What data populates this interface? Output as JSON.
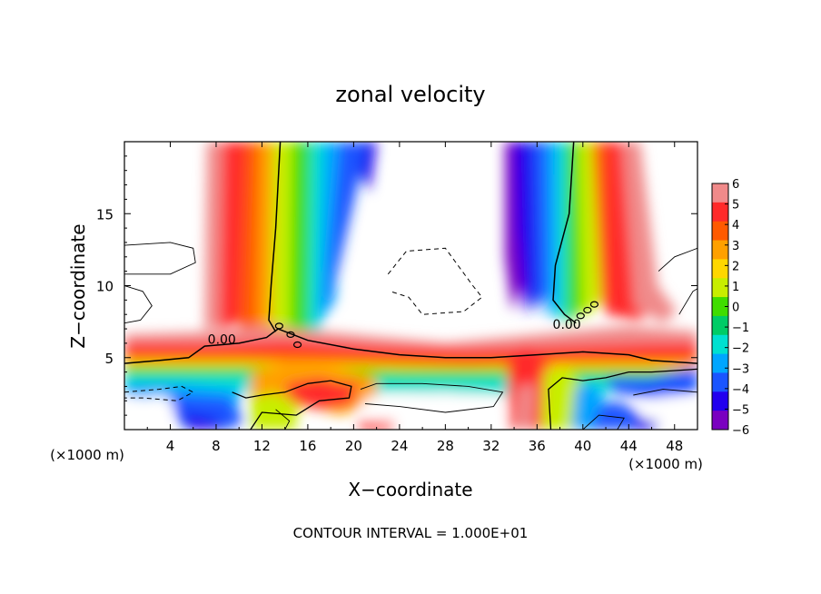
{
  "chart_data": {
    "type": "heatmap",
    "title": "zonal velocity",
    "xlabel": "X−coordinate",
    "ylabel": "Z−coordinate",
    "x_unit_left": "(×1000 m)",
    "x_unit_right": "(×1000 m)",
    "xlim": [
      0,
      50
    ],
    "ylim": [
      0,
      20
    ],
    "x_ticks": [
      4,
      8,
      12,
      16,
      20,
      24,
      28,
      32,
      36,
      40,
      44,
      48
    ],
    "y_ticks": [
      5,
      10,
      15
    ],
    "contour_label": "0.00",
    "footer": "CONTOUR INTERVAL = 1.000E+01",
    "colorbar": {
      "ticks": [
        6,
        5,
        4,
        3,
        2,
        1,
        0,
        -1,
        -2,
        -3,
        -4,
        -5,
        -6
      ],
      "colors": [
        "#f08a8a",
        "#ff2a2a",
        "#ff5a00",
        "#ffa000",
        "#ffd700",
        "#c8ee00",
        "#40dd00",
        "#00cc66",
        "#00e0d0",
        "#00a6ff",
        "#1a55ff",
        "#2200ee",
        "#7a00c0"
      ]
    },
    "grid": false,
    "legend": "right"
  }
}
